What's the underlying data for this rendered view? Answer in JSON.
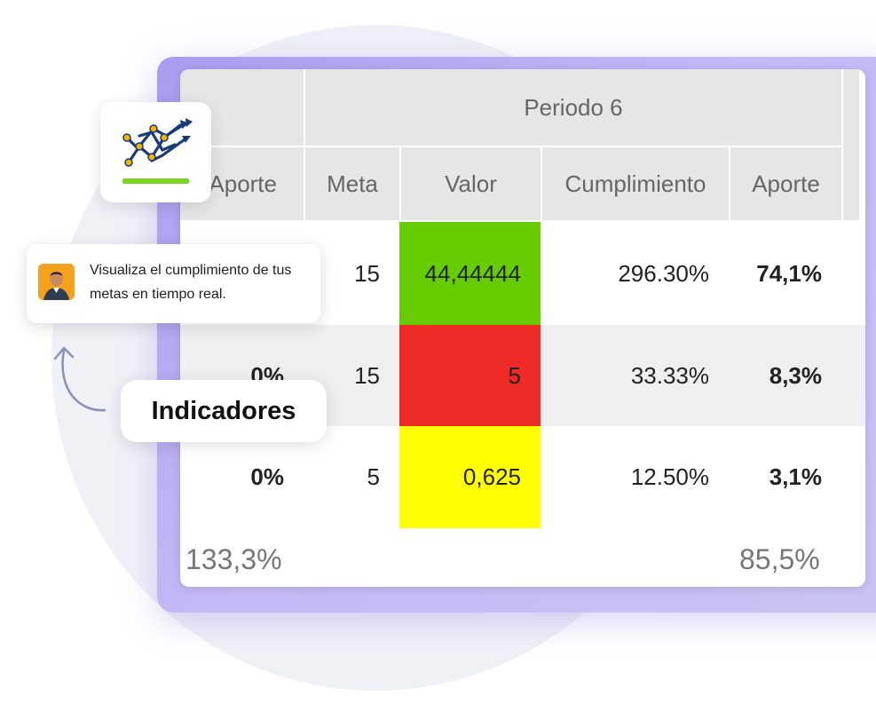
{
  "table": {
    "period_header": "Periodo 6",
    "columns": {
      "aporte_left": "Aporte",
      "meta": "Meta",
      "valor": "Valor",
      "cumplimiento": "Cumplimiento",
      "aporte": "Aporte"
    },
    "rows": [
      {
        "aporte_left": "",
        "meta": "15",
        "valor": "44,44444",
        "cumplimiento": "296.30%",
        "aporte": "74,1%",
        "status_color": "#66cc00"
      },
      {
        "aporte_left": "0%",
        "meta": "15",
        "valor": "5",
        "cumplimiento": "33.33%",
        "aporte": "8,3%",
        "status_color": "#ee2a27"
      },
      {
        "aporte_left": "0%",
        "meta": "5",
        "valor": "0,625",
        "cumplimiento": "12.50%",
        "aporte": "3,1%",
        "status_color": "#ffff00"
      }
    ],
    "totals": {
      "left": "133,3%",
      "right": "85,5%"
    }
  },
  "message": {
    "text": "Visualiza el cumplimiento de tus metas en tiempo real."
  },
  "badge": {
    "label": "Indicadores"
  },
  "logo": {
    "icon": "trend-arrows-icon",
    "accent": "#7cd81e",
    "primary": "#1a3a78",
    "dots": "#f4b400"
  },
  "colors": {
    "frame": "#b3a6f2",
    "header_bg": "#e6e6e6",
    "alt_row": "#efefef"
  }
}
